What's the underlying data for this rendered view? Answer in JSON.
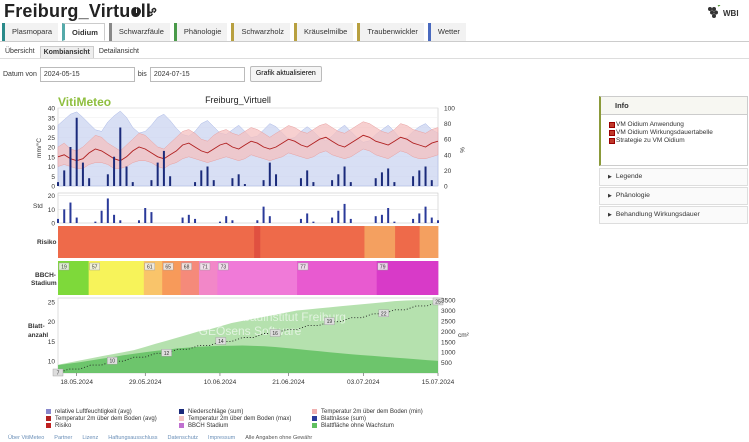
{
  "page": {
    "title": "Freiburg_Virtuell",
    "logo_text": "WBI"
  },
  "title_icons": [
    "info-icon",
    "link-icon"
  ],
  "tabs": [
    {
      "label": "Plasmopara",
      "color": "#2a8a8a",
      "active": false
    },
    {
      "label": "Oidium",
      "color": "#5aa",
      "active": true
    },
    {
      "label": "Schwarzfäule",
      "color": "#888",
      "active": false
    },
    {
      "label": "Phänologie",
      "color": "#4a9a4a",
      "active": false
    },
    {
      "label": "Schwarzholz",
      "color": "#b8a040",
      "active": false
    },
    {
      "label": "Kräuselmilbe",
      "color": "#b8a040",
      "active": false
    },
    {
      "label": "Traubenwickler",
      "color": "#b8a040",
      "active": false
    },
    {
      "label": "Wetter",
      "color": "#4a6abf",
      "active": false
    }
  ],
  "subtabs": [
    {
      "label": "Übersicht",
      "active": false
    },
    {
      "label": "Kombiansicht",
      "active": true
    },
    {
      "label": "Detailansicht",
      "active": false
    }
  ],
  "datebar": {
    "from_label": "Datum von",
    "from_value": "2024-05-15",
    "to_label": "bis",
    "to_value": "2024-07-15",
    "button": "Grafik aktualisieren"
  },
  "chart_data": {
    "type": "line",
    "brand": "VitiMeteo",
    "title": "Freiburg_Virtuell",
    "x_start": "2024-05-15",
    "x_ticks": [
      "18.05.2024",
      "29.05.2024",
      "10.06.2024",
      "21.06.2024",
      "03.07.2024",
      "15.07.2024"
    ],
    "weather": {
      "ylabel_left": "mm/°C",
      "ylabel_right": "%",
      "left_ticks": [
        0,
        5,
        10,
        15,
        20,
        25,
        30,
        35,
        40
      ],
      "right_ticks": [
        0,
        20,
        40,
        60,
        80,
        100
      ],
      "temp_avg": [
        15,
        16,
        14,
        13,
        14,
        17,
        19,
        18,
        16,
        14,
        13,
        15,
        18,
        20,
        19,
        17,
        15,
        14,
        16,
        18,
        21,
        22,
        20,
        18,
        17,
        19,
        21,
        22,
        20,
        19,
        21,
        23,
        22,
        20,
        19,
        20,
        22,
        24,
        23,
        21,
        20,
        22,
        24,
        25,
        23,
        21,
        20,
        22,
        24,
        26,
        25,
        23,
        22,
        21,
        23,
        25,
        24,
        22,
        21,
        20,
        22,
        23
      ],
      "temp_max": [
        20,
        22,
        19,
        18,
        20,
        23,
        26,
        25,
        22,
        20,
        18,
        21,
        24,
        27,
        26,
        23,
        20,
        19,
        22,
        25,
        28,
        29,
        27,
        24,
        23,
        26,
        28,
        29,
        27,
        26,
        28,
        30,
        29,
        27,
        25,
        27,
        29,
        31,
        30,
        28,
        27,
        29,
        31,
        32,
        30,
        28,
        27,
        29,
        31,
        33,
        32,
        30,
        28,
        27,
        29,
        32,
        31,
        29,
        28,
        27,
        29,
        30
      ],
      "temp_min": [
        10,
        11,
        10,
        9,
        9,
        11,
        12,
        12,
        11,
        9,
        9,
        10,
        12,
        13,
        13,
        12,
        10,
        9,
        11,
        12,
        14,
        15,
        14,
        13,
        12,
        13,
        14,
        15,
        14,
        13,
        14,
        16,
        15,
        14,
        13,
        14,
        15,
        17,
        16,
        15,
        14,
        15,
        17,
        18,
        16,
        15,
        14,
        15,
        17,
        19,
        18,
        16,
        15,
        14,
        16,
        18,
        17,
        15,
        14,
        14,
        15,
        16
      ],
      "humidity": [
        78,
        85,
        92,
        95,
        88,
        80,
        72,
        70,
        82,
        90,
        96,
        88,
        75,
        68,
        70,
        78,
        88,
        92,
        84,
        74,
        66,
        64,
        70,
        80,
        84,
        76,
        68,
        66,
        72,
        78,
        70,
        62,
        64,
        72,
        80,
        76,
        68,
        60,
        62,
        70,
        76,
        70,
        62,
        58,
        64,
        72,
        78,
        70,
        62,
        56,
        58,
        66,
        72,
        78,
        70,
        60,
        62,
        70,
        76,
        80,
        72,
        68
      ],
      "precip": [
        2,
        8,
        20,
        35,
        12,
        4,
        0,
        0,
        6,
        15,
        30,
        10,
        2,
        0,
        0,
        3,
        12,
        18,
        5,
        0,
        0,
        0,
        2,
        8,
        10,
        3,
        0,
        0,
        4,
        6,
        1,
        0,
        0,
        3,
        12,
        6,
        0,
        0,
        0,
        4,
        8,
        2,
        0,
        0,
        3,
        6,
        10,
        2,
        0,
        0,
        0,
        4,
        7,
        9,
        2,
        0,
        0,
        5,
        8,
        10,
        3,
        0
      ]
    },
    "hourly": {
      "ylabel": "Std",
      "ticks": [
        0,
        10,
        20
      ],
      "values": [
        3,
        10,
        15,
        4,
        0,
        0,
        1,
        9,
        18,
        6,
        2,
        0,
        0,
        2,
        11,
        8,
        0,
        0,
        0,
        0,
        4,
        6,
        3,
        0,
        0,
        0,
        1,
        5,
        2,
        0,
        0,
        0,
        2,
        12,
        5,
        0,
        0,
        0,
        0,
        3,
        7,
        1,
        0,
        0,
        4,
        9,
        14,
        3,
        0,
        0,
        0,
        5,
        6,
        11,
        1,
        0,
        0,
        3,
        7,
        12,
        4,
        2
      ]
    },
    "risk": {
      "label": "Risiko",
      "levels": [
        1,
        1,
        1,
        1,
        1,
        1,
        1,
        1,
        1,
        1,
        1,
        1,
        1,
        1,
        1,
        1,
        1,
        1,
        1,
        1,
        1,
        1,
        1,
        1,
        1,
        1,
        1,
        1,
        1,
        1,
        1,
        1,
        2,
        1,
        1,
        1,
        1,
        1,
        1,
        1,
        1,
        1,
        1,
        1,
        1,
        1,
        1,
        1,
        1,
        1,
        3,
        3,
        3,
        3,
        3,
        1,
        1,
        1,
        1,
        3,
        3,
        3
      ]
    },
    "bbch": {
      "label": "BBCH-Stadium",
      "stages": [
        {
          "code": "19",
          "days": 5,
          "color": "#7ed93a"
        },
        {
          "code": "57",
          "days": 9,
          "color": "#f7f35a"
        },
        {
          "code": "61",
          "days": 3,
          "color": "#f9c46a"
        },
        {
          "code": "65",
          "days": 3,
          "color": "#f79a5a"
        },
        {
          "code": "68",
          "days": 3,
          "color": "#f58a7a"
        },
        {
          "code": "71",
          "days": 3,
          "color": "#f287c8"
        },
        {
          "code": "73",
          "days": 13,
          "color": "#f07ad8"
        },
        {
          "code": "77",
          "days": 13,
          "color": "#e85ad0"
        },
        {
          "code": "79",
          "days": 10,
          "color": "#d83ac8"
        }
      ]
    },
    "leaves": {
      "ylabel": "Blatt-anzahl",
      "ylabel_right": "cm²",
      "left_ticks": [
        10,
        15,
        20,
        25
      ],
      "right_ticks": [
        0,
        500,
        1000,
        1500,
        2000,
        2500,
        3000,
        3500
      ],
      "leaf_count": [
        7,
        8,
        8,
        9,
        9,
        10,
        10,
        11,
        11,
        12,
        12,
        13,
        13,
        14,
        14,
        15,
        15,
        16,
        16,
        17,
        17,
        18,
        18,
        19,
        19,
        20,
        20,
        21,
        21,
        22,
        22,
        23,
        23,
        24,
        24,
        25
      ],
      "leaf_count_labels": [
        7,
        10,
        12,
        14,
        16,
        19,
        22,
        25
      ],
      "leaf_area": [
        400,
        500,
        600,
        700,
        800,
        900,
        1000,
        1100,
        1250,
        1400,
        1550,
        1700,
        1850,
        2000,
        2100,
        2250,
        2400,
        2500,
        2600,
        2700,
        2800,
        2900,
        3000,
        3050,
        3100,
        3150,
        3200,
        3250,
        3300,
        3350,
        3400,
        3450,
        3480,
        3500,
        3500,
        3500
      ],
      "leaf_area_no_growth": [
        380,
        450,
        520,
        600,
        680,
        760,
        850,
        920,
        1000,
        1060,
        1120,
        1180,
        1220,
        1260,
        1280,
        1300,
        1310,
        1320,
        1300,
        1280,
        1250,
        1200,
        1150,
        1100,
        1050,
        1000,
        950,
        900,
        860,
        820,
        780,
        740,
        700,
        660,
        620,
        580
      ]
    },
    "watermark": [
      "Staatliches Weinbauinstitut Freiburg",
      "GEOsens Software"
    ]
  },
  "legend": [
    {
      "label": "relative Luftfeuchtigkeit (avg)",
      "color": "#8888cc"
    },
    {
      "label": "Niederschläge (sum)",
      "color": "#1a2a7a"
    },
    {
      "label": "Temperatur 2m über dem Boden (min)",
      "color": "#f0b0b0"
    },
    {
      "label": "Temperatur 2m über dem Boden (avg)",
      "color": "#b02020"
    },
    {
      "label": "Temperatur 2m über dem Boden (max)",
      "color": "#f4c4c4"
    },
    {
      "label": "Blattnässe (sum)",
      "color": "#2a3a9a"
    },
    {
      "label": "Risiko",
      "color": "#c02020"
    },
    {
      "label": "BBCH Stadium",
      "color": "#c070d0"
    },
    {
      "label": "Blattfläche ohne Wachstum",
      "color": "#60c060"
    }
  ],
  "footer": {
    "links": [
      "Über VitiMeteo",
      "Partner",
      "Lizenz",
      "Haftungsausschluss",
      "Datenschutz",
      "Impressum"
    ],
    "note": "Alle Angaben ohne Gewähr"
  },
  "side": {
    "info_title": "Info",
    "info_links": [
      "VM Oidium Anwendung",
      "VM Oidium Wirkungsdauertabelle",
      "Strategie zu VM Oidium"
    ],
    "accordions": [
      "Legende",
      "Phänologie",
      "Behandlung Wirkungsdauer"
    ]
  }
}
